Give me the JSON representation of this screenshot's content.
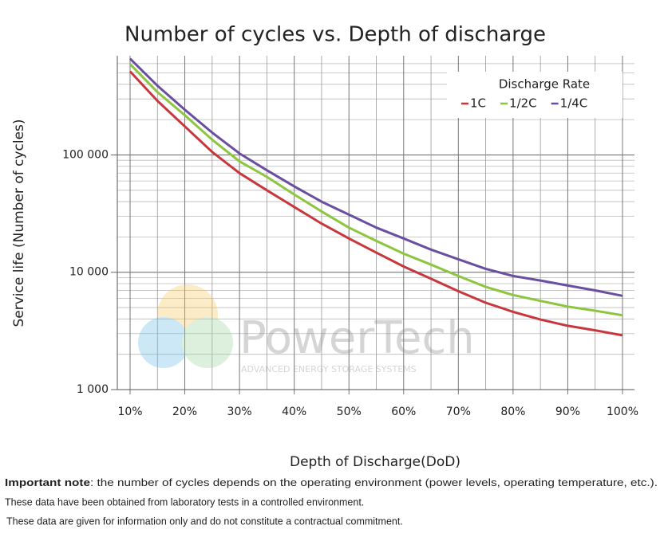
{
  "chart_data": {
    "type": "line",
    "title": "Number of cycles vs. Depth of discharge",
    "x_label": "Depth of Discharge(DoD)",
    "y_label": "Service life (Number of cycles)",
    "legend_title": "Discharge Rate",
    "legend": "upper right",
    "log_y": true,
    "grid": true,
    "minor_grid": true,
    "x": [
      10,
      15,
      20,
      25,
      30,
      35,
      40,
      45,
      50,
      55,
      60,
      65,
      70,
      75,
      80,
      85,
      90,
      95,
      100
    ],
    "series": [
      {
        "name": "1C",
        "color": "#c8373c",
        "values": [
          515000,
          289000,
          175000,
          106000,
          70000,
          50000,
          36000,
          26000,
          19400,
          14700,
          11200,
          8800,
          6900,
          5500,
          4600,
          3950,
          3500,
          3200,
          2900
        ]
      },
      {
        "name": "1/2C",
        "color": "#8cc63f",
        "values": [
          593000,
          343000,
          218000,
          135000,
          88000,
          65000,
          46000,
          33000,
          24000,
          18500,
          14400,
          11600,
          9300,
          7500,
          6400,
          5700,
          5100,
          4700,
          4300
        ]
      },
      {
        "name": "1/4C",
        "color": "#6a4fa0",
        "values": [
          661000,
          389000,
          243000,
          155000,
          103000,
          74000,
          54000,
          40000,
          31000,
          24000,
          19400,
          15600,
          12900,
          10700,
          9300,
          8500,
          7700,
          7000,
          6300
        ]
      }
    ],
    "xlim": [
      10,
      100
    ],
    "xticks": [
      {
        "value": 10,
        "label": "10%"
      },
      {
        "value": 20,
        "label": "20%"
      },
      {
        "value": 30,
        "label": "30%"
      },
      {
        "value": 40,
        "label": "40%"
      },
      {
        "value": 50,
        "label": "50%"
      },
      {
        "value": 60,
        "label": "60%"
      },
      {
        "value": 70,
        "label": "70%"
      },
      {
        "value": 80,
        "label": "80%"
      },
      {
        "value": 90,
        "label": "90%"
      },
      {
        "value": 100,
        "label": "100%"
      }
    ],
    "ylim": [
      1000,
      700000
    ],
    "yticks": [
      {
        "value": 1000,
        "label": "1 000"
      },
      {
        "value": 10000,
        "label": "10 000"
      },
      {
        "value": 100000,
        "label": "100 000"
      }
    ],
    "watermark": {
      "brand": "PowerTech",
      "tagline": "ADVANCED ENERGY STORAGE SYSTEMS"
    }
  },
  "notes": {
    "lead": "Important note",
    "line1": ": the number of cycles depends on the operating environment (power levels, operating temperature, etc.).",
    "line2": "These data have been obtained from laboratory tests in a controlled environment.",
    "line3": "These data are given for information only and do not constitute a contractual commitment."
  }
}
